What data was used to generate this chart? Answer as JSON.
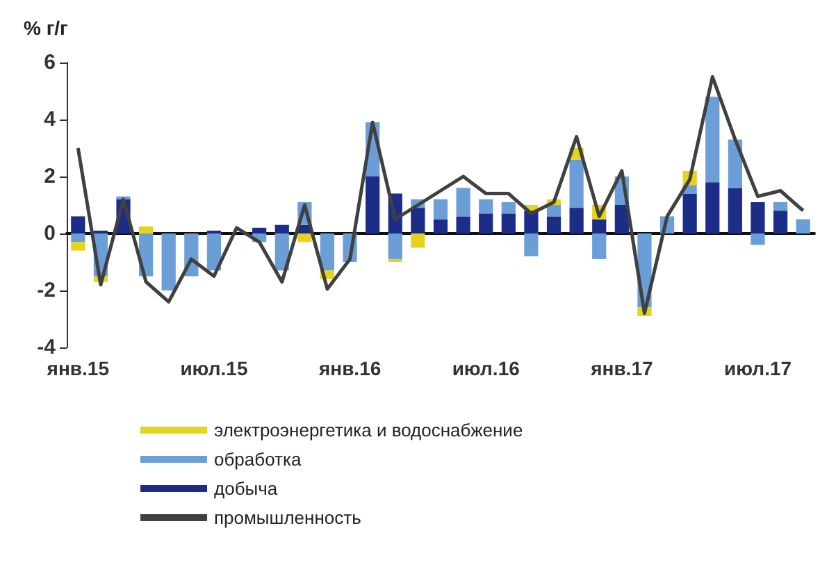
{
  "chart_data": {
    "type": "bar",
    "stacked": true,
    "ylabel": "% г/г",
    "categories": [
      "янв.15",
      null,
      null,
      null,
      null,
      null,
      "июл.15",
      null,
      null,
      null,
      null,
      null,
      "янв.16",
      null,
      null,
      null,
      null,
      null,
      "июл.16",
      null,
      null,
      null,
      null,
      null,
      "янв.17",
      null,
      null,
      null,
      null,
      null,
      "июл.17",
      null,
      null
    ],
    "series": [
      {
        "name": "добыча",
        "color": "#1b2d86",
        "values": [
          0.6,
          0.1,
          1.2,
          0,
          0,
          0,
          0.1,
          null,
          0.2,
          0.3,
          0.3,
          0,
          0,
          2.0,
          1.4,
          0.9,
          0.5,
          0.6,
          0.7,
          0.7,
          0.8,
          0.6,
          0.9,
          0.5,
          1.0,
          0,
          0,
          1.4,
          1.8,
          1.6,
          1.1,
          0.8,
          0
        ]
      },
      {
        "name": "обработка",
        "color": "#6b9ed6",
        "values": [
          -0.3,
          -1.5,
          0.1,
          -1.5,
          -2.0,
          -1.5,
          -1.3,
          0,
          -0.3,
          -1.3,
          0.8,
          -1.3,
          -1.0,
          1.9,
          -0.9,
          0.3,
          0.7,
          1.0,
          0.5,
          0.4,
          -0.8,
          0.4,
          1.7,
          -0.9,
          1.0,
          -2.6,
          0.6,
          0.3,
          3.0,
          1.7,
          -0.4,
          0.3,
          0.5
        ]
      },
      {
        "name": "электроэнергетика и водоснабжение",
        "color": "#e6d31e",
        "values": [
          -0.3,
          -0.2,
          0,
          0.25,
          0,
          0,
          0,
          0,
          0,
          0,
          -0.3,
          -0.3,
          0,
          0,
          -0.1,
          -0.5,
          0,
          0,
          0,
          0,
          0.2,
          0.2,
          0.4,
          0.5,
          0,
          -0.3,
          0,
          0.5,
          0,
          0,
          0,
          0,
          0
        ]
      },
      {
        "name": "промышленность",
        "type": "line",
        "color": "#404040",
        "values": [
          3.0,
          -1.8,
          1.2,
          -1.7,
          -2.4,
          -0.9,
          -1.5,
          0.2,
          -0.3,
          -1.7,
          1.0,
          -1.95,
          -0.9,
          3.9,
          0.5,
          1.0,
          1.5,
          2.0,
          1.4,
          1.4,
          0.7,
          1.1,
          3.4,
          0.6,
          2.2,
          -2.8,
          0.6,
          1.9,
          5.5,
          3.3,
          1.3,
          1.5,
          0.8
        ]
      }
    ],
    "ylim": [
      -4,
      6
    ],
    "yticks": [
      -4,
      -2,
      0,
      2,
      4,
      6
    ],
    "legend": "bottom",
    "marker": "none"
  }
}
